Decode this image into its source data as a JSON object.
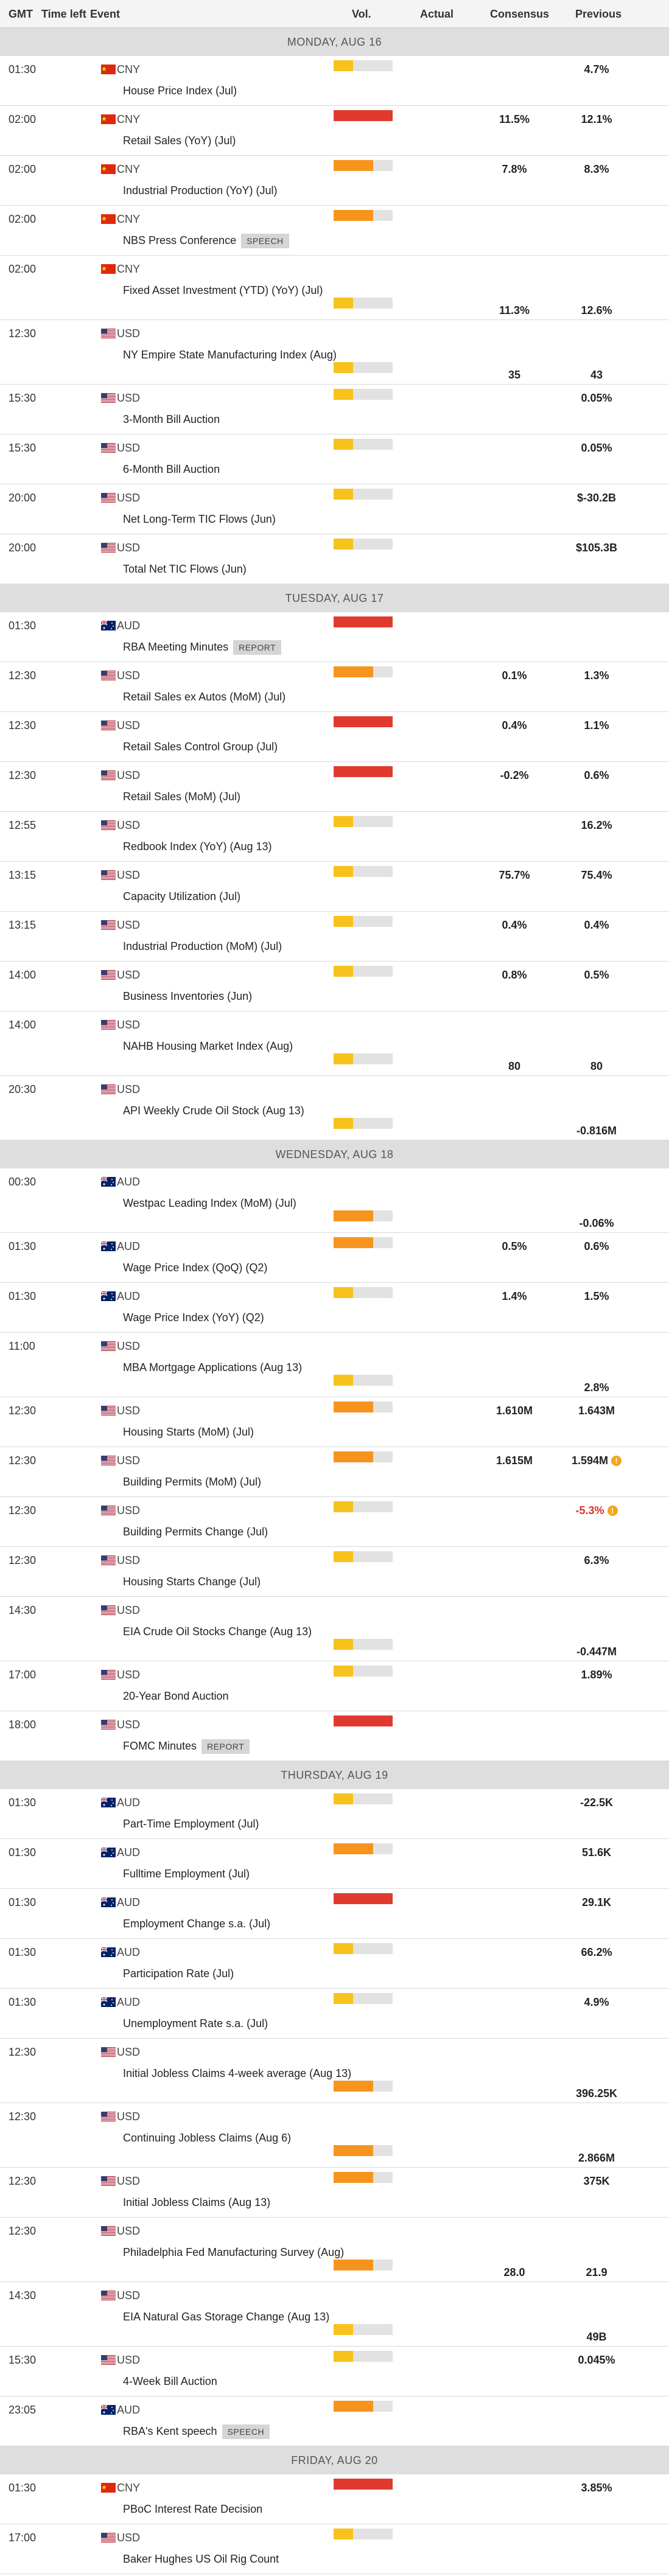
{
  "columns": [
    "GMT",
    "Time left",
    "Event",
    "Vol.",
    "Actual",
    "Consensus",
    "Previous"
  ],
  "vol_colors": [
    "#f7c21c",
    "#f7941d",
    "#e03a2f"
  ],
  "vol_max": 3,
  "days": [
    {
      "label": "MONDAY, AUG 16",
      "events": [
        {
          "time": "01:30",
          "currency": "CNY",
          "name": "House Price Index (Jul)",
          "volatility": 1,
          "previous": "4.7%"
        },
        {
          "time": "02:00",
          "currency": "CNY",
          "name": "Retail Sales (YoY) (Jul)",
          "volatility": 3,
          "consensus": "11.5%",
          "previous": "12.1%"
        },
        {
          "time": "02:00",
          "currency": "CNY",
          "name": "Industrial Production (YoY) (Jul)",
          "volatility": 2,
          "consensus": "7.8%",
          "previous": "8.3%"
        },
        {
          "time": "02:00",
          "currency": "CNY",
          "name": "NBS Press Conference",
          "tag": "SPEECH",
          "volatility": 2
        },
        {
          "time": "02:00",
          "currency": "CNY",
          "name": "Fixed Asset Investment (YTD) (YoY) (Jul)",
          "volatility": 1,
          "consensus": "11.3%",
          "previous": "12.6%"
        },
        {
          "time": "12:30",
          "currency": "USD",
          "name": "NY Empire State Manufacturing Index (Aug)",
          "volatility": 1,
          "consensus": "35",
          "previous": "43"
        },
        {
          "time": "15:30",
          "currency": "USD",
          "name": "3-Month Bill Auction",
          "volatility": 1,
          "previous": "0.05%"
        },
        {
          "time": "15:30",
          "currency": "USD",
          "name": "6-Month Bill Auction",
          "volatility": 1,
          "previous": "0.05%"
        },
        {
          "time": "20:00",
          "currency": "USD",
          "name": "Net Long-Term TIC Flows (Jun)",
          "volatility": 1,
          "previous": "$-30.2B"
        },
        {
          "time": "20:00",
          "currency": "USD",
          "name": "Total Net TIC Flows (Jun)",
          "volatility": 1,
          "previous": "$105.3B"
        }
      ]
    },
    {
      "label": "TUESDAY, AUG 17",
      "events": [
        {
          "time": "01:30",
          "currency": "AUD",
          "name": "RBA Meeting Minutes",
          "tag": "REPORT",
          "volatility": 3
        },
        {
          "time": "12:30",
          "currency": "USD",
          "name": "Retail Sales ex Autos (MoM) (Jul)",
          "volatility": 2,
          "consensus": "0.1%",
          "previous": "1.3%"
        },
        {
          "time": "12:30",
          "currency": "USD",
          "name": "Retail Sales Control Group (Jul)",
          "volatility": 3,
          "consensus": "0.4%",
          "previous": "1.1%"
        },
        {
          "time": "12:30",
          "currency": "USD",
          "name": "Retail Sales (MoM) (Jul)",
          "volatility": 3,
          "consensus": "-0.2%",
          "previous": "0.6%"
        },
        {
          "time": "12:55",
          "currency": "USD",
          "name": "Redbook Index (YoY) (Aug 13)",
          "volatility": 1,
          "previous": "16.2%"
        },
        {
          "time": "13:15",
          "currency": "USD",
          "name": "Capacity Utilization (Jul)",
          "volatility": 1,
          "consensus": "75.7%",
          "previous": "75.4%"
        },
        {
          "time": "13:15",
          "currency": "USD",
          "name": "Industrial Production (MoM) (Jul)",
          "volatility": 1,
          "consensus": "0.4%",
          "previous": "0.4%"
        },
        {
          "time": "14:00",
          "currency": "USD",
          "name": "Business Inventories (Jun)",
          "volatility": 1,
          "consensus": "0.8%",
          "previous": "0.5%"
        },
        {
          "time": "14:00",
          "currency": "USD",
          "name": "NAHB Housing Market Index (Aug)",
          "volatility": 1,
          "consensus": "80",
          "previous": "80"
        },
        {
          "time": "20:30",
          "currency": "USD",
          "name": "API Weekly Crude Oil Stock (Aug 13)",
          "volatility": 1,
          "previous": "-0.816M"
        }
      ]
    },
    {
      "label": "WEDNESDAY, AUG 18",
      "events": [
        {
          "time": "00:30",
          "currency": "AUD",
          "name": "Westpac Leading Index (MoM) (Jul)",
          "volatility": 2,
          "previous": "-0.06%"
        },
        {
          "time": "01:30",
          "currency": "AUD",
          "name": "Wage Price Index (QoQ) (Q2)",
          "volatility": 2,
          "consensus": "0.5%",
          "previous": "0.6%"
        },
        {
          "time": "01:30",
          "currency": "AUD",
          "name": "Wage Price Index (YoY) (Q2)",
          "volatility": 1,
          "consensus": "1.4%",
          "previous": "1.5%"
        },
        {
          "time": "11:00",
          "currency": "USD",
          "name": "MBA Mortgage Applications (Aug 13)",
          "volatility": 1,
          "previous": "2.8%"
        },
        {
          "time": "12:30",
          "currency": "USD",
          "name": "Housing Starts (MoM) (Jul)",
          "volatility": 2,
          "consensus": "1.610M",
          "previous": "1.643M"
        },
        {
          "time": "12:30",
          "currency": "USD",
          "name": "Building Permits (MoM) (Jul)",
          "volatility": 2,
          "consensus": "1.615M",
          "previous": "1.594M",
          "revised": true
        },
        {
          "time": "12:30",
          "currency": "USD",
          "name": "Building Permits Change (Jul)",
          "volatility": 1,
          "previous": "-5.3%",
          "revised": true,
          "previous_color": "#d9342b"
        },
        {
          "time": "12:30",
          "currency": "USD",
          "name": "Housing Starts Change (Jul)",
          "volatility": 1,
          "previous": "6.3%"
        },
        {
          "time": "14:30",
          "currency": "USD",
          "name": "EIA Crude Oil Stocks Change (Aug 13)",
          "volatility": 1,
          "previous": "-0.447M"
        },
        {
          "time": "17:00",
          "currency": "USD",
          "name": "20-Year Bond Auction",
          "volatility": 1,
          "previous": "1.89%"
        },
        {
          "time": "18:00",
          "currency": "USD",
          "name": "FOMC Minutes",
          "tag": "REPORT",
          "volatility": 3
        }
      ]
    },
    {
      "label": "THURSDAY, AUG 19",
      "events": [
        {
          "time": "01:30",
          "currency": "AUD",
          "name": "Part-Time Employment (Jul)",
          "volatility": 1,
          "previous": "-22.5K"
        },
        {
          "time": "01:30",
          "currency": "AUD",
          "name": "Fulltime Employment (Jul)",
          "volatility": 2,
          "previous": "51.6K"
        },
        {
          "time": "01:30",
          "currency": "AUD",
          "name": "Employment Change s.a. (Jul)",
          "volatility": 3,
          "previous": "29.1K"
        },
        {
          "time": "01:30",
          "currency": "AUD",
          "name": "Participation Rate (Jul)",
          "volatility": 1,
          "previous": "66.2%"
        },
        {
          "time": "01:30",
          "currency": "AUD",
          "name": "Unemployment Rate s.a. (Jul)",
          "volatility": 1,
          "previous": "4.9%"
        },
        {
          "time": "12:30",
          "currency": "USD",
          "name": "Initial Jobless Claims 4-week average (Aug 13)",
          "volatility": 2,
          "previous": "396.25K"
        },
        {
          "time": "12:30",
          "currency": "USD",
          "name": "Continuing Jobless Claims (Aug 6)",
          "volatility": 2,
          "previous": "2.866M"
        },
        {
          "time": "12:30",
          "currency": "USD",
          "name": "Initial Jobless Claims (Aug 13)",
          "volatility": 2,
          "previous": "375K"
        },
        {
          "time": "12:30",
          "currency": "USD",
          "name": "Philadelphia Fed Manufacturing Survey (Aug)",
          "volatility": 2,
          "consensus": "28.0",
          "previous": "21.9"
        },
        {
          "time": "14:30",
          "currency": "USD",
          "name": "EIA Natural Gas Storage Change (Aug 13)",
          "volatility": 1,
          "previous": "49B"
        },
        {
          "time": "15:30",
          "currency": "USD",
          "name": "4-Week Bill Auction",
          "volatility": 1,
          "previous": "0.045%"
        },
        {
          "time": "23:05",
          "currency": "AUD",
          "name": "RBA's Kent speech",
          "tag": "SPEECH",
          "volatility": 2
        }
      ]
    },
    {
      "label": "FRIDAY, AUG 20",
      "events": [
        {
          "time": "01:30",
          "currency": "CNY",
          "name": "PBoC Interest Rate Decision",
          "volatility": 3,
          "previous": "3.85%"
        },
        {
          "time": "17:00",
          "currency": "USD",
          "name": "Baker Hughes US Oil Rig Count",
          "volatility": 1
        }
      ]
    }
  ]
}
